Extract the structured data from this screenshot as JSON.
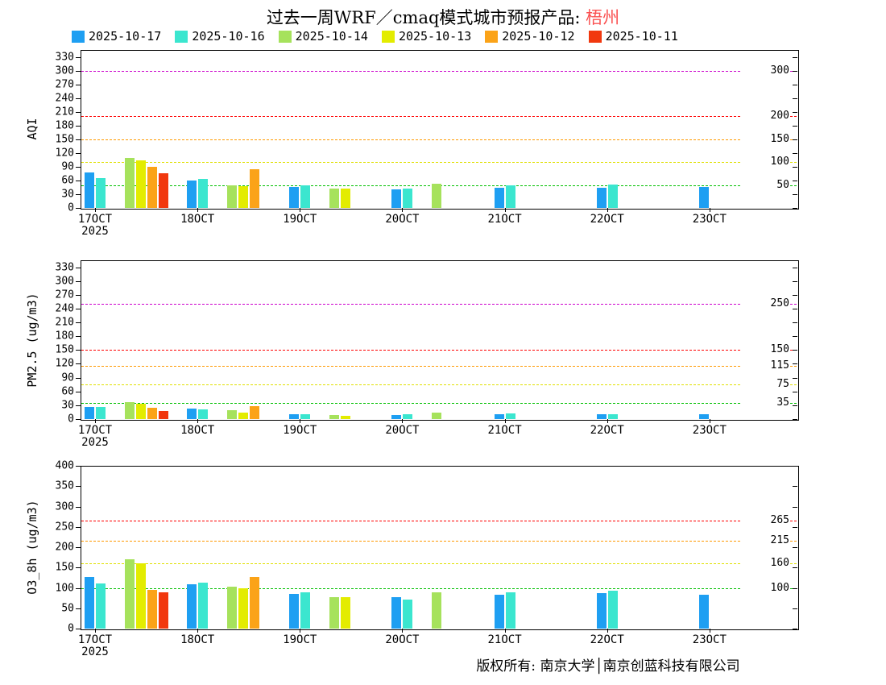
{
  "title": {
    "prefix": "过去一周WRF／cmaq模式城市预报产品: ",
    "city": "梧州",
    "city_color": "#FA5050"
  },
  "legend": {
    "items": [
      {
        "label": "2025-10-17",
        "color": "#1E9FF2"
      },
      {
        "label": "2025-10-16",
        "color": "#3BE6CF"
      },
      {
        "label": "2025-10-14",
        "color": "#A6E25C"
      },
      {
        "label": "2025-10-13",
        "color": "#E3EC00"
      },
      {
        "label": "2025-10-12",
        "color": "#FBA318"
      },
      {
        "label": "2025-10-11",
        "color": "#F1380E"
      }
    ]
  },
  "footer": {
    "text": "版权所有: 南京大学│南京创蓝科技有限公司"
  },
  "chart_data": [
    {
      "type": "bar",
      "ylabel": "AQI",
      "xlabel": "",
      "ylim": [
        0,
        345
      ],
      "yticks": [
        0,
        30,
        60,
        90,
        120,
        150,
        180,
        210,
        240,
        270,
        300,
        330
      ],
      "categories": [
        "17OCT",
        "18OCT",
        "19OCT",
        "20OCT",
        "21OCT",
        "22OCT",
        "23OCT"
      ],
      "year_label": "2025",
      "grid": false,
      "legend_position": "top",
      "series": [
        {
          "name": "2025-10-17",
          "values": [
            78,
            60,
            46,
            40,
            44,
            44,
            46
          ]
        },
        {
          "name": "2025-10-16",
          "values": [
            65,
            63,
            49,
            42,
            49,
            51,
            null
          ]
        },
        {
          "name": "2025-10-14",
          "values": [
            110,
            50,
            42,
            52,
            null,
            null,
            null
          ]
        },
        {
          "name": "2025-10-13",
          "values": [
            104,
            48,
            43,
            null,
            null,
            null,
            null
          ]
        },
        {
          "name": "2025-10-12",
          "values": [
            90,
            84,
            null,
            null,
            null,
            null,
            null
          ]
        },
        {
          "name": "2025-10-11",
          "values": [
            75,
            null,
            null,
            null,
            null,
            null,
            null
          ]
        }
      ],
      "ref_lines": [
        {
          "value": 50,
          "label": "50",
          "color": "#00C000"
        },
        {
          "value": 100,
          "label": "100",
          "color": "#E0E000"
        },
        {
          "value": 150,
          "label": "150",
          "color": "#FF9900"
        },
        {
          "value": 200,
          "label": "200",
          "color": "#FF0000"
        },
        {
          "value": 300,
          "label": "300",
          "color": "#CC00CC"
        }
      ]
    },
    {
      "type": "bar",
      "ylabel": "PM2.5 (ug/m3)",
      "xlabel": "",
      "ylim": [
        0,
        345
      ],
      "yticks": [
        0,
        30,
        60,
        90,
        120,
        150,
        180,
        210,
        240,
        270,
        300,
        330
      ],
      "categories": [
        "17OCT",
        "18OCT",
        "19OCT",
        "20OCT",
        "21OCT",
        "22OCT",
        "23OCT"
      ],
      "year_label": "2025",
      "grid": false,
      "legend_position": "top",
      "series": [
        {
          "name": "2025-10-17",
          "values": [
            27,
            22,
            10,
            8,
            10,
            10,
            11
          ]
        },
        {
          "name": "2025-10-16",
          "values": [
            26,
            21,
            11,
            10,
            12,
            10,
            null
          ]
        },
        {
          "name": "2025-10-14",
          "values": [
            36,
            20,
            8,
            14,
            null,
            null,
            null
          ]
        },
        {
          "name": "2025-10-13",
          "values": [
            34,
            14,
            7,
            null,
            null,
            null,
            null
          ]
        },
        {
          "name": "2025-10-12",
          "values": [
            24,
            28,
            null,
            null,
            null,
            null,
            null
          ]
        },
        {
          "name": "2025-10-11",
          "values": [
            18,
            null,
            null,
            null,
            null,
            null,
            null
          ]
        }
      ],
      "ref_lines": [
        {
          "value": 35,
          "label": "35",
          "color": "#00C000"
        },
        {
          "value": 75,
          "label": "75",
          "color": "#E0E000"
        },
        {
          "value": 115,
          "label": "115",
          "color": "#FF9900"
        },
        {
          "value": 150,
          "label": "150",
          "color": "#FF0000"
        },
        {
          "value": 250,
          "label": "250",
          "color": "#CC00CC"
        }
      ]
    },
    {
      "type": "bar",
      "ylabel": "O3_8h (ug/m3)",
      "xlabel": "",
      "ylim": [
        0,
        400
      ],
      "yticks": [
        0,
        50,
        100,
        150,
        200,
        250,
        300,
        350,
        400
      ],
      "categories": [
        "17OCT",
        "18OCT",
        "19OCT",
        "20OCT",
        "21OCT",
        "22OCT",
        "23OCT"
      ],
      "year_label": "2025",
      "grid": false,
      "legend_position": "top",
      "series": [
        {
          "name": "2025-10-17",
          "values": [
            127,
            108,
            85,
            77,
            83,
            88,
            84
          ]
        },
        {
          "name": "2025-10-16",
          "values": [
            110,
            112,
            90,
            72,
            90,
            93,
            null
          ]
        },
        {
          "name": "2025-10-14",
          "values": [
            170,
            102,
            77,
            90,
            null,
            null,
            null
          ]
        },
        {
          "name": "2025-10-13",
          "values": [
            160,
            100,
            77,
            null,
            null,
            null,
            null
          ]
        },
        {
          "name": "2025-10-12",
          "values": [
            95,
            127,
            null,
            null,
            null,
            null,
            null
          ]
        },
        {
          "name": "2025-10-11",
          "values": [
            90,
            null,
            null,
            null,
            null,
            null,
            null
          ]
        }
      ],
      "ref_lines": [
        {
          "value": 100,
          "label": "100",
          "color": "#00C000"
        },
        {
          "value": 160,
          "label": "160",
          "color": "#E0E000"
        },
        {
          "value": 215,
          "label": "215",
          "color": "#FF9900"
        },
        {
          "value": 265,
          "label": "265",
          "color": "#FF0000"
        }
      ]
    }
  ]
}
